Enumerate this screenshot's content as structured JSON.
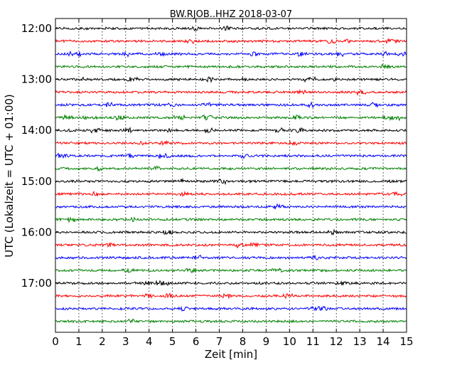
{
  "chart_data": {
    "type": "line",
    "title": "BW.RJOB..HHZ 2018-03-07",
    "xlabel": "Zeit  [min]",
    "ylabel": "UTC (Lokalzeit = UTC + 01:00)",
    "xlim": [
      0,
      15
    ],
    "x_ticks": [
      0,
      1,
      2,
      3,
      4,
      5,
      6,
      7,
      8,
      9,
      10,
      11,
      12,
      13,
      14,
      15
    ],
    "x_tick_labels": [
      "0",
      "1",
      "2",
      "3",
      "4",
      "5",
      "6",
      "7",
      "8",
      "9",
      "10",
      "11",
      "12",
      "13",
      "14",
      "15"
    ],
    "y_tick_labels": [
      "12:00",
      "13:00",
      "14:00",
      "15:00",
      "16:00",
      "17:00"
    ],
    "x_grid": "dotted vertical lines at each minute",
    "trace_interval_minutes": 15,
    "trace_colors": [
      "#000000",
      "#ff0000",
      "#0000ff",
      "#008000"
    ],
    "traces": [
      {
        "start": "12:00",
        "color": "#000000"
      },
      {
        "start": "12:15",
        "color": "#ff0000"
      },
      {
        "start": "12:30",
        "color": "#0000ff"
      },
      {
        "start": "12:45",
        "color": "#008000"
      },
      {
        "start": "13:00",
        "color": "#000000"
      },
      {
        "start": "13:15",
        "color": "#ff0000"
      },
      {
        "start": "13:30",
        "color": "#0000ff"
      },
      {
        "start": "13:45",
        "color": "#008000"
      },
      {
        "start": "14:00",
        "color": "#000000"
      },
      {
        "start": "14:15",
        "color": "#ff0000"
      },
      {
        "start": "14:30",
        "color": "#0000ff"
      },
      {
        "start": "14:45",
        "color": "#008000"
      },
      {
        "start": "15:00",
        "color": "#000000"
      },
      {
        "start": "15:15",
        "color": "#ff0000"
      },
      {
        "start": "15:30",
        "color": "#0000ff"
      },
      {
        "start": "15:45",
        "color": "#008000"
      },
      {
        "start": "16:00",
        "color": "#000000"
      },
      {
        "start": "16:15",
        "color": "#ff0000"
      },
      {
        "start": "16:30",
        "color": "#0000ff"
      },
      {
        "start": "16:45",
        "color": "#008000"
      },
      {
        "start": "17:00",
        "color": "#000000"
      },
      {
        "start": "17:15",
        "color": "#ff0000"
      },
      {
        "start": "17:30",
        "color": "#0000ff"
      },
      {
        "start": "17:45",
        "color": "#008000"
      }
    ]
  }
}
